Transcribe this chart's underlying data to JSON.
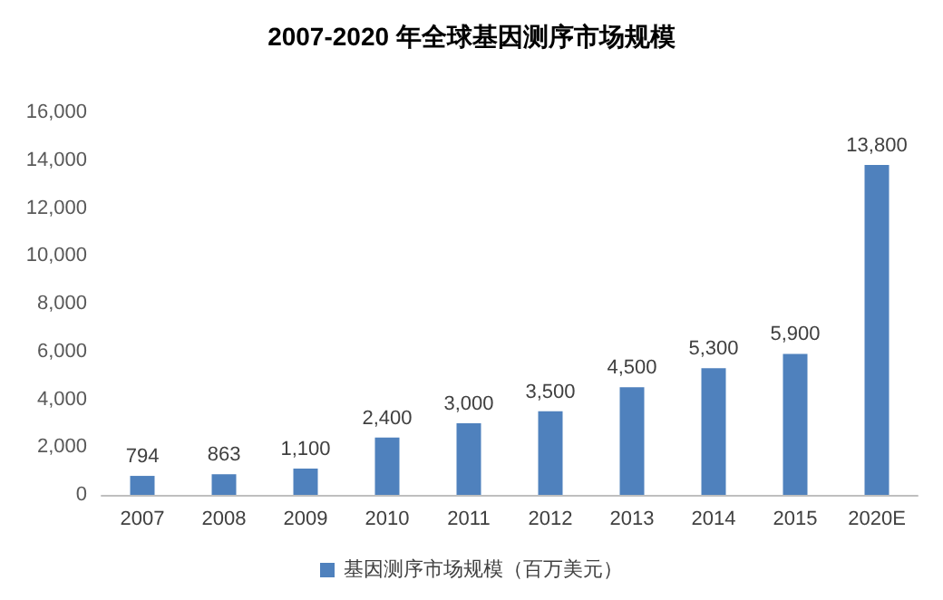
{
  "chart_data": {
    "type": "bar",
    "title": "2007-2020 年全球基因测序市场规模",
    "categories": [
      "2007",
      "2008",
      "2009",
      "2010",
      "2011",
      "2012",
      "2013",
      "2014",
      "2015",
      "2020E"
    ],
    "series": [
      {
        "name": "基因测序市场规模（百万美元）",
        "color": "#4f81bd",
        "values": [
          794,
          863,
          1100,
          2400,
          3000,
          3500,
          4500,
          5300,
          5900,
          13800
        ],
        "value_labels": [
          "794",
          "863",
          "1,100",
          "2,400",
          "3,000",
          "3,500",
          "4,500",
          "5,300",
          "5,900",
          "13,800"
        ]
      }
    ],
    "ylim": [
      0,
      16000
    ],
    "yticks": [
      0,
      {
        "value": 2000,
        "label": "2,000"
      },
      {
        "value": 4000,
        "label": "4,000"
      },
      {
        "value": 6000,
        "label": "6,000"
      },
      {
        "value": 8000,
        "label": "8,000"
      },
      {
        "value": 10000,
        "label": "10,000"
      },
      {
        "value": 12000,
        "label": "12,000"
      },
      {
        "value": 14000,
        "label": "14,000"
      },
      {
        "value": 16000,
        "label": "16,000"
      }
    ],
    "grid": false,
    "legend": "bottom"
  }
}
